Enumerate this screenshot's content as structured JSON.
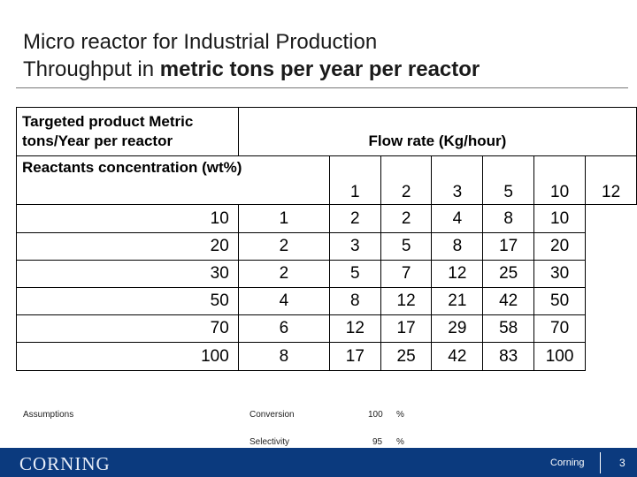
{
  "title": {
    "line1": "Micro reactor for Industrial Production",
    "line2_plain": "Throughput in ",
    "line2_bold": "metric tons per year per reactor"
  },
  "table": {
    "header_left": "Targeted product  Metric tons/Year per reactor",
    "flow_header": "Flow rate (Kg/hour)",
    "row_header": "Reactants concentration (wt%)",
    "flow_rates": [
      "1",
      "2",
      "3",
      "5",
      "10",
      "12"
    ],
    "rows": [
      {
        "conc": "10",
        "values": [
          "1",
          "2",
          "2",
          "4",
          "8",
          "10"
        ]
      },
      {
        "conc": "20",
        "values": [
          "2",
          "3",
          "5",
          "8",
          "17",
          "20"
        ]
      },
      {
        "conc": "30",
        "values": [
          "2",
          "5",
          "7",
          "12",
          "25",
          "30"
        ]
      },
      {
        "conc": "50",
        "values": [
          "4",
          "8",
          "12",
          "21",
          "42",
          "50"
        ]
      },
      {
        "conc": "70",
        "values": [
          "6",
          "12",
          "17",
          "29",
          "58",
          "70"
        ]
      },
      {
        "conc": "100",
        "values": [
          "8",
          "17",
          "25",
          "42",
          "83",
          "100"
        ]
      }
    ]
  },
  "assumptions": {
    "label": "Assumptions",
    "items": [
      {
        "name": "Conversion",
        "value": "100",
        "unit": "%"
      },
      {
        "name": "Selectivity",
        "value": "95",
        "unit": "%"
      }
    ]
  },
  "footer": {
    "logo": "CORNING",
    "company": "Corning",
    "page": "3",
    "bg_color": "#0b3a7e"
  }
}
